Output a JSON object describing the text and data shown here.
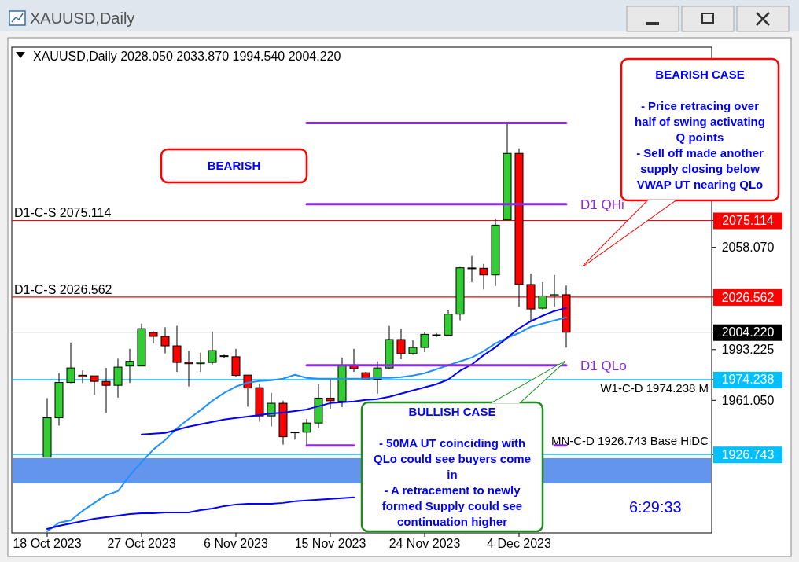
{
  "chart_data": {
    "type": "candlestick",
    "title": "XAUUSD,Daily",
    "subtitle": "XAUUSD,Daily 2028.050 2033.870 1994.540 2004.220",
    "categories": [
      "18 Oct 2023",
      null,
      null,
      null,
      null,
      null,
      null,
      null,
      "27 Oct 2023",
      null,
      null,
      null,
      null,
      null,
      null,
      null,
      "6 Nov 2023",
      null,
      null,
      null,
      null,
      null,
      null,
      null,
      "15 Nov 2023",
      null,
      null,
      null,
      null,
      null,
      null,
      null,
      "24 Nov 2023",
      null,
      null,
      null,
      null,
      null,
      null,
      null,
      "4 Dec 2023",
      null,
      null,
      null,
      null
    ],
    "ohlc": [
      [
        1925.0,
        1962.5,
        1925.0,
        1950.0
      ],
      [
        1950.0,
        1978.3,
        1945.0,
        1972.4
      ],
      [
        1972.4,
        1997.7,
        1972.0,
        1981.6
      ],
      [
        1977.0,
        1980.0,
        1972.0,
        1976.0
      ],
      [
        1976.6,
        1976.6,
        1964.5,
        1973.1
      ],
      [
        1973.1,
        1981.6,
        1953.3,
        1970.6
      ],
      [
        1970.6,
        1987.4,
        1962.8,
        1982.1
      ],
      [
        1982.8,
        1993.7,
        1972.1,
        1985.8
      ],
      [
        1982.8,
        2009.7,
        1982.8,
        2006.5
      ],
      [
        2004.1,
        2004.9,
        1997.1,
        2001.6
      ],
      [
        2001.6,
        2007.4,
        1990.8,
        1995.6
      ],
      [
        1995.6,
        2008.3,
        1979.1,
        1985.1
      ],
      [
        1985.2,
        1992.4,
        1969.9,
        1984.3
      ],
      [
        1984.3,
        1991.2,
        1979.1,
        1985.2
      ],
      [
        1985.1,
        2004.7,
        1983.8,
        1992.6
      ],
      [
        1989.3,
        1990.0,
        1988.0,
        1988.9
      ],
      [
        1988.7,
        1993.7,
        1976.1,
        1976.9
      ],
      [
        1977.1,
        1977.1,
        1957.0,
        1968.9
      ],
      [
        1969.1,
        1971.8,
        1947.5,
        1951.2
      ],
      [
        1951.2,
        1965.8,
        1944.5,
        1959.2
      ],
      [
        1959.2,
        1960.8,
        1933.0,
        1938.0
      ],
      [
        1941.0,
        1941.2,
        1936.2,
        1940.8
      ],
      [
        1940.9,
        1949.2,
        1931.7,
        1946.7
      ],
      [
        1946.7,
        1971.3,
        1943.4,
        1962.5
      ],
      [
        1962.5,
        1974.9,
        1955.8,
        1960.8
      ],
      [
        1960.5,
        1988.2,
        1956.7,
        1982.9
      ],
      [
        1982.9,
        1993.7,
        1979.1,
        1981.1
      ],
      [
        1978.6,
        1979.1,
        1974.6,
        1974.6
      ],
      [
        1974.4,
        1985.8,
        1965.3,
        1981.6
      ],
      [
        1981.6,
        2008.2,
        1980.8,
        1999.6
      ],
      [
        1999.6,
        2006.6,
        1987.1,
        1990.7
      ],
      [
        1990.7,
        1999.1,
        1989.9,
        1994.6
      ],
      [
        1994.6,
        2004.1,
        1991.6,
        2002.9
      ],
      [
        2002.4,
        2003.7,
        2001.1,
        2002.6
      ],
      [
        2002.4,
        2018.5,
        2001.9,
        2015.7
      ],
      [
        2015.7,
        2045.6,
        2011.8,
        2045.1
      ],
      [
        2044.6,
        2052.6,
        2036.0,
        2045.0
      ],
      [
        2044.8,
        2047.6,
        2031.3,
        2040.6
      ],
      [
        2040.6,
        2076.4,
        2033.6,
        2072.2
      ],
      [
        2075.5,
        2136.2,
        2075.5,
        2117.6
      ],
      [
        2117.6,
        2120.8,
        2020.3,
        2034.6
      ],
      [
        2034.5,
        2041.5,
        2011.0,
        2019.0
      ],
      [
        2019.5,
        2036.0,
        2018.7,
        2027.3
      ],
      [
        2027.3,
        2040.6,
        2020.3,
        2028.05
      ],
      [
        2028.05,
        2033.87,
        1994.54,
        2004.22
      ]
    ],
    "ylim": [
      1877,
      2185
    ],
    "yticks": [
      {
        "value": 2075.114,
        "label": "2075.114"
      },
      {
        "value": 2058.07,
        "label": "2058.070"
      },
      {
        "value": 2026.562,
        "label": "2026.562"
      },
      {
        "value": 2004.22,
        "label": "2004.220"
      },
      {
        "value": 1993.225,
        "label": "1993.225"
      },
      {
        "value": 1974.238,
        "label": "1974.238"
      },
      {
        "value": 1961.05,
        "label": "1961.050"
      },
      {
        "value": 1926.743,
        "label": "1926.743"
      }
    ],
    "series": [
      {
        "type": "line",
        "color": "#1e90ff",
        "values": [
          1878.0,
          1883.5,
          1885.0,
          1891.0,
          1896.0,
          1901.0,
          1903.5,
          1913.4,
          1921.9,
          1929.9,
          1935.9,
          1943.4,
          1949.3,
          1954.8,
          1960.8,
          1965.8,
          1969.8,
          1972.3,
          1973.3,
          1973.8,
          1974.8,
          1977.3,
          1975.3,
          1974.8,
          1974.8,
          1974.8,
          1974.8,
          1974.8,
          1975.3,
          1975.3,
          1975.8,
          1976.8,
          1978.3,
          1980.8,
          1983.3,
          1985.8,
          1988.2,
          1992.2,
          1997.2,
          2000.7,
          2003.7,
          2007.7,
          2009.7,
          2011.7,
          2013.7
        ]
      },
      {
        "type": "line",
        "color": "#0000ff",
        "values": [
          null,
          null,
          null,
          null,
          null,
          null,
          null,
          null,
          1939.4,
          1939.9,
          1940.4,
          1942.4,
          1944.4,
          1945.9,
          1947.4,
          1948.9,
          1949.9,
          1950.8,
          1951.8,
          1952.8,
          1953.3,
          1954.3,
          1955.3,
          1957.3,
          1959.3,
          1959.8,
          1960.3,
          1961.3,
          1961.8,
          1963.3,
          1965.3,
          1967.3,
          1969.3,
          1971.3,
          1974.3,
          1979.8,
          1983.8,
          1989.7,
          1994.7,
          2000.7,
          2006.7,
          2011.2,
          2014.7,
          2017.7,
          2019.7
        ]
      },
      {
        "type": "line",
        "color": "#0000ff",
        "values": [
          1879.5,
          1881.5,
          1883.0,
          1884.5,
          1886.0,
          1887.0,
          1888.0,
          1889.0,
          1889.5,
          1889.5,
          1890.0,
          1890.0,
          1890.0,
          1891.5,
          1892.5,
          1894.0,
          1895.0,
          1895.5,
          1895.5,
          1895.5,
          1896.0,
          1897.0,
          1897.5,
          1898.0,
          1898.5,
          1899.0,
          1899.5,
          null,
          null,
          null,
          null,
          null,
          null,
          null,
          null,
          null,
          null,
          null,
          null,
          null,
          null,
          null,
          null,
          null,
          null
        ]
      },
      {
        "type": "line",
        "color": "#8a2be2",
        "values": [
          null,
          null,
          null,
          null,
          null,
          null,
          null,
          null,
          null,
          null,
          null,
          null,
          null,
          null,
          null,
          null,
          null,
          null,
          null,
          null,
          null,
          null,
          2136.9,
          2136.9,
          2136.9,
          2136.9,
          2136.9,
          2136.9,
          2136.9,
          2136.9,
          2136.9,
          2136.9,
          2136.9,
          2136.9,
          2136.9,
          2136.9,
          2136.9,
          2136.9,
          2136.9,
          2136.9,
          2136.9,
          2136.9,
          2136.9,
          2136.9,
          2136.9
        ]
      },
      {
        "type": "line",
        "name": "D1 QHi",
        "color": "#8a2be2",
        "values": [
          null,
          null,
          null,
          null,
          null,
          null,
          null,
          null,
          null,
          null,
          null,
          null,
          null,
          null,
          null,
          null,
          null,
          null,
          null,
          null,
          null,
          null,
          2085.5,
          2085.5,
          2085.5,
          2085.5,
          2085.5,
          2085.5,
          2085.5,
          2085.5,
          2085.5,
          2085.5,
          2085.5,
          2085.5,
          2085.5,
          2085.5,
          2085.5,
          2085.5,
          2085.5,
          2085.5,
          2085.5,
          2085.5,
          2085.5,
          2085.5,
          2085.5
        ]
      },
      {
        "type": "line",
        "name": "D1 QLo",
        "color": "#8a2be2",
        "values": [
          null,
          null,
          null,
          null,
          null,
          null,
          null,
          null,
          null,
          null,
          null,
          null,
          null,
          null,
          null,
          null,
          null,
          null,
          null,
          null,
          null,
          null,
          1983.3,
          1983.3,
          1983.3,
          1983.3,
          1983.3,
          1983.3,
          1983.3,
          1983.3,
          1983.3,
          1983.3,
          1983.3,
          1983.3,
          1983.3,
          1983.3,
          1983.3,
          1983.3,
          1983.3,
          1983.3,
          1983.3,
          1983.3,
          1983.3,
          1983.3,
          1983.3
        ]
      },
      {
        "type": "line",
        "color": "#8a2be2",
        "values": [
          null,
          null,
          null,
          null,
          null,
          null,
          null,
          null,
          null,
          null,
          null,
          null,
          null,
          null,
          null,
          null,
          null,
          null,
          null,
          null,
          null,
          null,
          1932.4,
          1932.4,
          1932.4,
          1932.4,
          1932.4,
          null,
          null,
          null,
          null,
          null,
          null,
          null,
          null,
          null,
          null,
          null,
          null,
          null,
          null,
          null,
          null,
          1932.4,
          1932.4
        ]
      }
    ],
    "ref_lines": [
      {
        "axis": "y",
        "value": 2075.114,
        "label": "D1-C-S 2075.114",
        "color": "#ff0000"
      },
      {
        "axis": "y",
        "value": 2026.562,
        "label": "D1-C-S 2026.562",
        "color": "#ff0000"
      },
      {
        "axis": "y",
        "value": 2004.22,
        "label": null,
        "color": "#c0c0c0"
      },
      {
        "axis": "y",
        "value": 1974.238,
        "label": "W1-C-D 1974.238 M",
        "color": "#00bfff"
      },
      {
        "axis": "y",
        "value": 1926.743,
        "label": "MN-C-D 1926.743 Base HiDC",
        "color": "#00bfff"
      }
    ],
    "bands": [
      {
        "axis": "y",
        "from": 1908.4,
        "to": 1924.4,
        "color": "#6495ed"
      }
    ],
    "annotations": [
      "BEARISH",
      "BEARISH CASE\n\n- Price retracing over\nhalf of swing activating\nQ points\n- Sell off made another\nsupply closing below\nVWAP UT nearing QLo",
      "BULLISH CASE\n\n- 50MA UT coinciding with\nQLo could see buyers come\nin\n- A retracement to newly\nformed Supply could see\ncontinuation higher",
      "6:29:33"
    ]
  }
}
